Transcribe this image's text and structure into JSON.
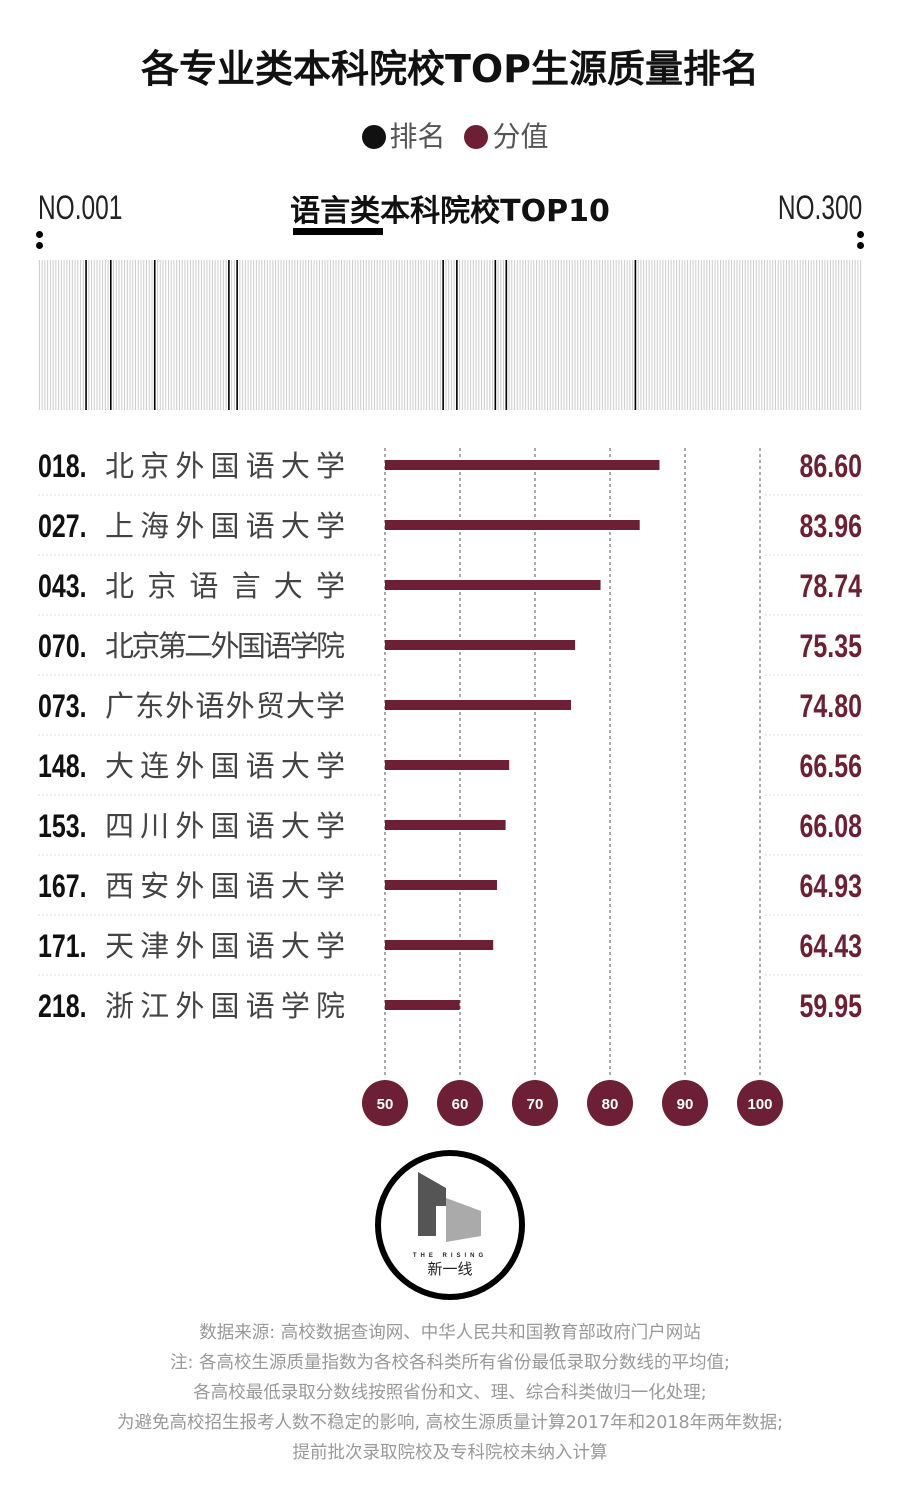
{
  "title": "各专业类本科院校TOP生源质量排名",
  "legend": [
    {
      "label": "排名",
      "color": "#111111"
    },
    {
      "label": "分值",
      "color": "#6d1f35"
    }
  ],
  "range_start": "NO.001",
  "range_end": "NO.300",
  "chart_data": {
    "type": "bar",
    "title": "语言类本科院校TOP10",
    "orientation": "horizontal",
    "total_ranks": 300,
    "categories": [
      "北京外国语大学",
      "上海外国语大学",
      "北京语言大学",
      "北京第二外国语学院",
      "广东外语外贸大学",
      "大连外国语大学",
      "四川外国语大学",
      "西安外国语大学",
      "天津外国语大学",
      "浙江外国语学院"
    ],
    "ranks": [
      "018.",
      "027.",
      "043.",
      "070.",
      "073.",
      "148.",
      "153.",
      "167.",
      "171.",
      "218."
    ],
    "rank_values": [
      18,
      27,
      43,
      70,
      73,
      148,
      153,
      167,
      171,
      218
    ],
    "values": [
      86.6,
      83.96,
      78.74,
      75.35,
      74.8,
      66.56,
      66.08,
      64.93,
      64.43,
      59.95
    ],
    "value_labels": [
      "86.60",
      "83.96",
      "78.74",
      "75.35",
      "74.80",
      "66.56",
      "66.08",
      "64.93",
      "64.43",
      "59.95"
    ],
    "xlim": [
      50,
      100
    ],
    "xticks": [
      "50",
      "60",
      "70",
      "80",
      "90",
      "100"
    ],
    "bar_color": "#6d1f35"
  },
  "logo": {
    "text_en": "THE RISING",
    "text_cn": "新一线"
  },
  "footer": [
    "数据来源: 高校数据查询网、中华人民共和国教育部政府门户网站",
    "注: 各高校生源质量指数为各校各科类所有省份最低录取分数线的平均值;",
    "各高校最低录取分数线按照省份和文、理、综合科类做归一化处理;",
    "为避免高校招生报考人数不稳定的影响, 高校生源质量计算2017年和2018年两年数据;",
    "提前批次录取院校及专科院校未纳入计算"
  ]
}
